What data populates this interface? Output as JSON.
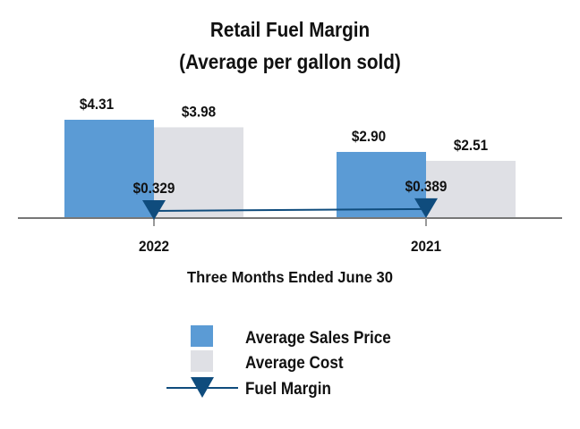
{
  "chart_data": {
    "type": "bar",
    "title": "Retail Fuel Margin",
    "subtitle": "(Average per gallon sold)",
    "xlabel": "Three Months Ended June 30",
    "ylabel": "",
    "categories": [
      "2022",
      "2021"
    ],
    "series": [
      {
        "name": "Average Sales Price",
        "type": "bar",
        "color": "#5b9bd5",
        "values": [
          4.31,
          2.9
        ],
        "labels": [
          "$4.31",
          "$2.90"
        ]
      },
      {
        "name": "Average Cost",
        "type": "bar",
        "color": "#dfe0e5",
        "values": [
          3.98,
          2.51
        ],
        "labels": [
          "$3.98",
          "$2.51"
        ]
      },
      {
        "name": "Fuel Margin",
        "type": "line",
        "marker": "triangle-down",
        "color": "#0f4c7d",
        "values": [
          0.329,
          0.389
        ],
        "labels": [
          "$0.329",
          "$0.389"
        ]
      }
    ],
    "ylim": [
      0,
      4.31
    ],
    "grid": false,
    "legend_position": "bottom"
  }
}
